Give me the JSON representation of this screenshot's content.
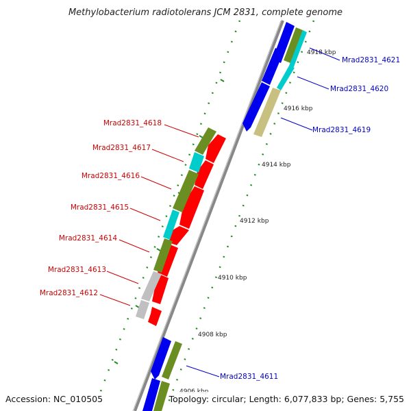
{
  "title": "Methylobacterium radiotolerans JCM 2831, complete genome",
  "accession": "Accession: NC_010505",
  "topology": "Topology: circular; Length: 6,077,833 bp; Genes: 5,755",
  "colors": {
    "forward_cds": "#0000ee",
    "reverse_cds": "#ff0000",
    "cog_olive": "#6b8e23",
    "cog_cyan": "#00cccc",
    "cog_khaki": "#c8c080",
    "cog_gray": "#c0c0c0",
    "forward_label": "#0000cc",
    "reverse_label": "#cc0000",
    "tick": "#228b22",
    "backbone": "#888888"
  },
  "ticks": [
    {
      "label": "4918 kbp"
    },
    {
      "label": "4916 kbp"
    },
    {
      "label": "4914 kbp"
    },
    {
      "label": "4912 kbp"
    },
    {
      "label": "4910 kbp"
    },
    {
      "label": "4908 kbp"
    },
    {
      "label": "4906 kbp"
    }
  ],
  "genes": [
    {
      "name": "Mrad2831_4621",
      "strand": "forward"
    },
    {
      "name": "Mrad2831_4620",
      "strand": "forward"
    },
    {
      "name": "Mrad2831_4619",
      "strand": "forward"
    },
    {
      "name": "Mrad2831_4618",
      "strand": "reverse"
    },
    {
      "name": "Mrad2831_4617",
      "strand": "reverse"
    },
    {
      "name": "Mrad2831_4616",
      "strand": "reverse"
    },
    {
      "name": "Mrad2831_4615",
      "strand": "reverse"
    },
    {
      "name": "Mrad2831_4614",
      "strand": "reverse"
    },
    {
      "name": "Mrad2831_4613",
      "strand": "reverse"
    },
    {
      "name": "Mrad2831_4612",
      "strand": "reverse"
    },
    {
      "name": "Mrad2831_4611",
      "strand": "forward"
    }
  ]
}
